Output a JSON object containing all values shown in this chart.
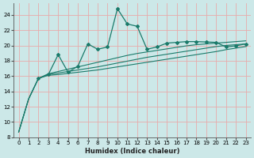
{
  "xlabel": "Humidex (Indice chaleur)",
  "bg_color": "#cce8e8",
  "grid_color": "#e8aaaa",
  "line_color": "#1a7a6a",
  "xlim": [
    -0.5,
    23.5
  ],
  "ylim": [
    8,
    25.5
  ],
  "yticks": [
    8,
    10,
    12,
    14,
    16,
    18,
    20,
    22,
    24
  ],
  "xticks": [
    0,
    1,
    2,
    3,
    4,
    5,
    6,
    7,
    8,
    9,
    10,
    11,
    12,
    13,
    14,
    15,
    16,
    17,
    18,
    19,
    20,
    21,
    22,
    23
  ],
  "series_smooth": [
    {
      "x": [
        0,
        1,
        2,
        3,
        4,
        5,
        6,
        7,
        8,
        9,
        10,
        11,
        12,
        13,
        14,
        15,
        16,
        17,
        18,
        19,
        20,
        21,
        22,
        23
      ],
      "y": [
        8.7,
        13.0,
        15.7,
        16.1,
        16.2,
        16.35,
        16.5,
        16.65,
        16.8,
        17.0,
        17.2,
        17.4,
        17.6,
        17.8,
        18.0,
        18.2,
        18.4,
        18.6,
        18.8,
        19.0,
        19.2,
        19.45,
        19.65,
        19.85
      ]
    },
    {
      "x": [
        0,
        1,
        2,
        3,
        4,
        5,
        6,
        7,
        8,
        9,
        10,
        11,
        12,
        13,
        14,
        15,
        16,
        17,
        18,
        19,
        20,
        21,
        22,
        23
      ],
      "y": [
        8.7,
        13.0,
        15.7,
        16.2,
        16.4,
        16.6,
        16.8,
        17.0,
        17.2,
        17.45,
        17.7,
        17.95,
        18.2,
        18.45,
        18.65,
        18.85,
        19.05,
        19.25,
        19.45,
        19.65,
        19.85,
        20.0,
        20.1,
        20.2
      ]
    },
    {
      "x": [
        0,
        1,
        2,
        3,
        4,
        5,
        6,
        7,
        8,
        9,
        10,
        11,
        12,
        13,
        14,
        15,
        16,
        17,
        18,
        19,
        20,
        21,
        22,
        23
      ],
      "y": [
        8.7,
        13.0,
        15.7,
        16.3,
        16.6,
        16.9,
        17.2,
        17.5,
        17.8,
        18.1,
        18.4,
        18.7,
        18.95,
        19.15,
        19.35,
        19.55,
        19.75,
        19.95,
        20.1,
        20.2,
        20.3,
        20.4,
        20.5,
        20.6
      ]
    }
  ],
  "series_marker": {
    "x": [
      2,
      3,
      4,
      5,
      6,
      7,
      8,
      9,
      10,
      11,
      12,
      13,
      14,
      15,
      16,
      17,
      18,
      19,
      20,
      21,
      22,
      23
    ],
    "y": [
      15.7,
      16.2,
      18.8,
      16.5,
      17.3,
      20.2,
      19.5,
      19.8,
      24.8,
      22.8,
      22.5,
      19.5,
      19.8,
      20.3,
      20.4,
      20.5,
      20.5,
      20.45,
      20.4,
      19.8,
      19.95,
      20.2
    ]
  }
}
